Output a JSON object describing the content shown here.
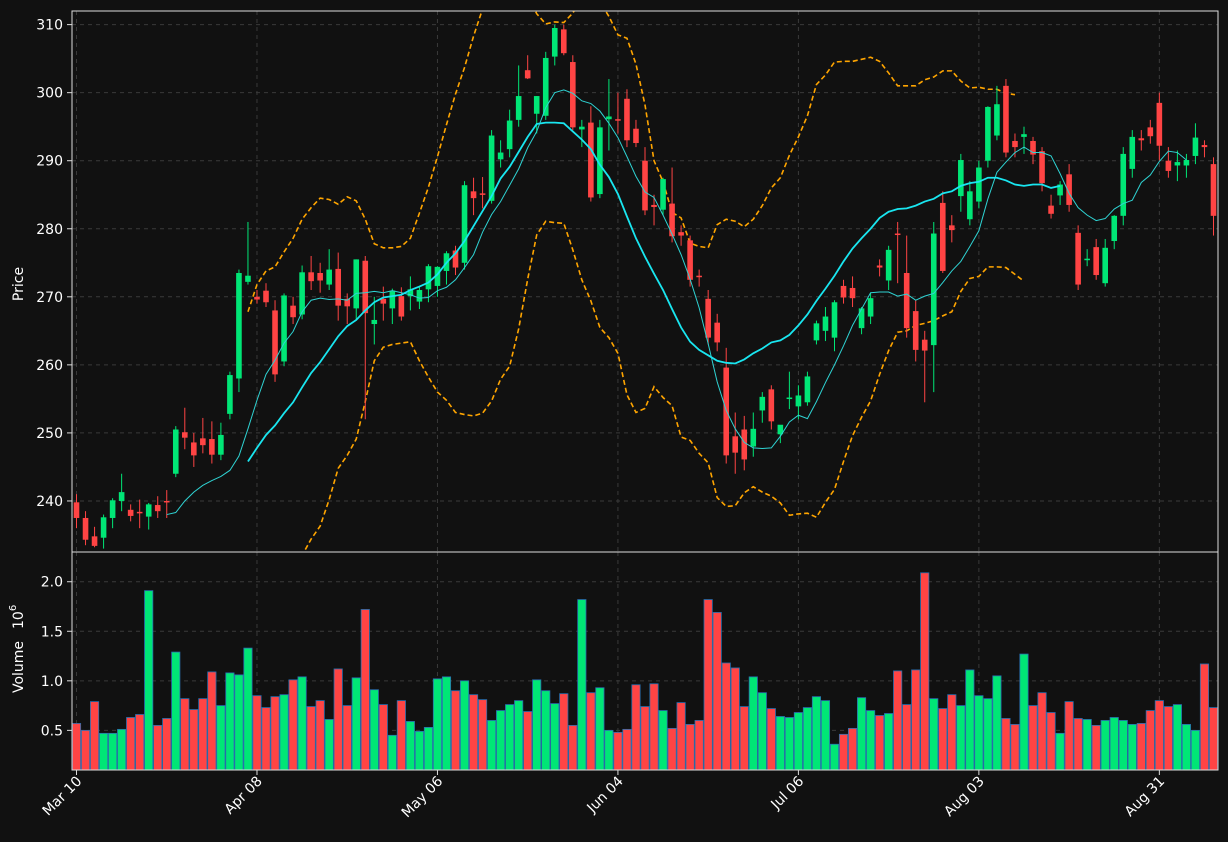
{
  "chart_data": {
    "type": "candlestick",
    "colors": {
      "background": "#111111",
      "grid": "#3a3a3a",
      "axis": "#dddddd",
      "up": "#00e676",
      "down": "#ff4444",
      "ma_fast": "#2fd3d3",
      "ma_slow": "#19e6f0",
      "band": "#ffa500"
    },
    "price_panel": {
      "ylabel": "Price",
      "ylim": [
        232.5,
        312
      ],
      "yticks": [
        240,
        250,
        260,
        270,
        280,
        290,
        300,
        310
      ]
    },
    "volume_panel": {
      "ylabel": "Volume",
      "ylabel_exponent": "6",
      "ylim": [
        0.1,
        2.3
      ],
      "yticks": [
        0.5,
        1.0,
        1.5,
        2.0
      ],
      "ytick_labels": [
        "0.5",
        "1.0",
        "1.5",
        "2.0"
      ]
    },
    "x_tick_labels": [
      {
        "index": 0,
        "label": "Mar 10"
      },
      {
        "index": 20,
        "label": "Apr 08"
      },
      {
        "index": 40,
        "label": "May 06"
      },
      {
        "index": 60,
        "label": "Jun 04"
      },
      {
        "index": 80,
        "label": "Jul 06"
      },
      {
        "index": 100,
        "label": "Aug 03"
      },
      {
        "index": 120,
        "label": "Aug 31"
      }
    ],
    "candles": [
      [
        239.8,
        241.0,
        236.0,
        237.5,
        0.57
      ],
      [
        237.5,
        238.5,
        233.5,
        234.3,
        0.5
      ],
      [
        234.8,
        236.2,
        233.2,
        233.4,
        0.79
      ],
      [
        234.6,
        238.0,
        233.0,
        237.6,
        0.47
      ],
      [
        237.5,
        240.4,
        236.0,
        240.1,
        0.47
      ],
      [
        240.0,
        244.0,
        238.5,
        241.3,
        0.51
      ],
      [
        238.7,
        239.5,
        237.0,
        237.8,
        0.63
      ],
      [
        238.4,
        240.2,
        236.0,
        238.3,
        0.66
      ],
      [
        237.7,
        239.7,
        235.8,
        239.5,
        1.91
      ],
      [
        239.4,
        240.7,
        237.5,
        238.5,
        0.55
      ],
      [
        240.0,
        241.6,
        237.5,
        239.9,
        0.62
      ],
      [
        244.0,
        251.0,
        243.5,
        250.5,
        1.29
      ],
      [
        250.1,
        253.7,
        247.6,
        249.3,
        0.82
      ],
      [
        248.6,
        250.0,
        245.0,
        246.7,
        0.71
      ],
      [
        249.2,
        252.2,
        247.0,
        248.2,
        0.82
      ],
      [
        249.1,
        251.7,
        245.5,
        246.8,
        1.09
      ],
      [
        246.8,
        251.5,
        246.0,
        249.7,
        0.75
      ],
      [
        252.8,
        259.0,
        252.0,
        258.5,
        1.08
      ],
      [
        258.0,
        274.0,
        256.0,
        273.5,
        1.06
      ],
      [
        272.2,
        281.0,
        271.8,
        273.1,
        1.33
      ],
      [
        270.0,
        271.0,
        269.0,
        269.6,
        0.85
      ],
      [
        270.9,
        272.0,
        268.5,
        269.2,
        0.73
      ],
      [
        268.0,
        269.5,
        257.5,
        258.6,
        0.84
      ],
      [
        260.5,
        270.5,
        259.8,
        270.2,
        0.86
      ],
      [
        268.7,
        270.0,
        266.0,
        267.0,
        1.01
      ],
      [
        267.4,
        274.6,
        266.7,
        273.6,
        1.04
      ],
      [
        273.6,
        276.0,
        271.0,
        272.3,
        0.74
      ],
      [
        273.5,
        275.0,
        270.6,
        272.4,
        0.8
      ],
      [
        271.8,
        277.0,
        271.0,
        274.0,
        0.61
      ],
      [
        274.1,
        276.5,
        266.5,
        268.7,
        1.12
      ],
      [
        269.7,
        270.5,
        266.0,
        268.6,
        0.75
      ],
      [
        268.3,
        275.5,
        266.5,
        275.5,
        1.03
      ],
      [
        275.3,
        276.0,
        252.0,
        267.6,
        1.72
      ],
      [
        266.0,
        270.0,
        263.0,
        266.6,
        0.91
      ],
      [
        269.7,
        271.5,
        266.5,
        269.0,
        0.76
      ],
      [
        268.3,
        271.2,
        266.0,
        270.9,
        0.45
      ],
      [
        270.1,
        271.4,
        266.5,
        267.1,
        0.8
      ],
      [
        270.1,
        273.0,
        268.0,
        271.1,
        0.59
      ],
      [
        269.3,
        271.5,
        268.2,
        271.0,
        0.49
      ],
      [
        271.1,
        274.8,
        269.2,
        274.5,
        0.53
      ],
      [
        271.6,
        274.5,
        270.0,
        274.4,
        1.02
      ],
      [
        273.8,
        276.7,
        271.8,
        276.4,
        1.04
      ],
      [
        276.8,
        277.5,
        273.2,
        274.3,
        0.9
      ],
      [
        275.0,
        287.0,
        274.0,
        286.4,
        1.0
      ],
      [
        285.5,
        287.5,
        282.0,
        284.5,
        0.86
      ],
      [
        285.2,
        287.6,
        283.0,
        285.0,
        0.81
      ],
      [
        284.1,
        294.5,
        283.7,
        293.7,
        0.6
      ],
      [
        290.2,
        293.0,
        289.0,
        291.2,
        0.7
      ],
      [
        291.7,
        297.5,
        290.5,
        295.9,
        0.76
      ],
      [
        296.0,
        304.0,
        295.0,
        299.5,
        0.8
      ],
      [
        303.3,
        305.5,
        302.0,
        302.1,
        0.69
      ],
      [
        296.9,
        299.5,
        294.0,
        299.5,
        1.01
      ],
      [
        296.6,
        306.0,
        296.0,
        305.1,
        0.9
      ],
      [
        305.3,
        310.0,
        304.0,
        309.5,
        0.77
      ],
      [
        309.3,
        310.0,
        305.5,
        305.8,
        0.87
      ],
      [
        304.5,
        305.5,
        294.5,
        294.9,
        0.55
      ],
      [
        294.6,
        296.0,
        292.0,
        295.0,
        1.82
      ],
      [
        295.6,
        298.0,
        284.0,
        284.6,
        0.88
      ],
      [
        285.1,
        296.0,
        284.5,
        294.9,
        0.93
      ],
      [
        296.1,
        302.0,
        291.5,
        296.5,
        0.5
      ],
      [
        296.1,
        300.0,
        294.0,
        296.0,
        0.48
      ],
      [
        299.1,
        300.5,
        292.0,
        293.0,
        0.51
      ],
      [
        294.7,
        296.0,
        292.0,
        292.6,
        0.96
      ],
      [
        290.0,
        292.0,
        282.0,
        282.7,
        0.74
      ],
      [
        283.5,
        285.0,
        280.5,
        283.2,
        0.97
      ],
      [
        282.8,
        287.5,
        282.0,
        287.3,
        0.7
      ],
      [
        283.7,
        289.0,
        278.0,
        278.9,
        0.52
      ],
      [
        279.5,
        280.5,
        277.5,
        279.0,
        0.78
      ],
      [
        278.3,
        279.0,
        271.5,
        272.5,
        0.56
      ],
      [
        273.1,
        274.0,
        271.5,
        273.0,
        0.6
      ],
      [
        269.7,
        271.0,
        263.0,
        264.0,
        1.82
      ],
      [
        266.2,
        267.5,
        262.0,
        263.3,
        1.69
      ],
      [
        259.6,
        262.5,
        245.5,
        246.7,
        1.18
      ],
      [
        249.5,
        253.0,
        244.0,
        247.1,
        1.13
      ],
      [
        250.5,
        252.5,
        244.5,
        246.1,
        0.74
      ],
      [
        248.0,
        253.0,
        246.5,
        250.6,
        1.04
      ],
      [
        253.3,
        256.0,
        251.5,
        255.3,
        0.88
      ],
      [
        256.4,
        257.0,
        250.5,
        251.7,
        0.72
      ],
      [
        249.8,
        251.0,
        248.5,
        251.2,
        0.64
      ],
      [
        255.0,
        259.0,
        253.5,
        255.2,
        0.63
      ],
      [
        253.9,
        257.0,
        252.0,
        255.5,
        0.68
      ],
      [
        254.5,
        259.0,
        254.0,
        258.3,
        0.73
      ],
      [
        263.6,
        266.5,
        263.0,
        266.1,
        0.84
      ],
      [
        265.0,
        268.5,
        263.5,
        267.1,
        0.8
      ],
      [
        264.0,
        269.5,
        262.0,
        269.2,
        0.36
      ],
      [
        271.6,
        272.5,
        269.0,
        269.9,
        0.46
      ],
      [
        271.3,
        273.0,
        268.5,
        269.8,
        0.52
      ],
      [
        265.4,
        268.5,
        264.5,
        268.3,
        0.83
      ],
      [
        267.1,
        270.5,
        266.0,
        269.8,
        0.7
      ],
      [
        274.6,
        275.5,
        273.0,
        274.3,
        0.65
      ],
      [
        272.4,
        277.5,
        271.0,
        276.9,
        0.67
      ],
      [
        279.3,
        281.0,
        272.0,
        279.1,
        1.1
      ],
      [
        273.5,
        279.0,
        264.0,
        265.4,
        0.76
      ],
      [
        267.9,
        269.5,
        260.5,
        262.2,
        1.11
      ],
      [
        263.7,
        265.0,
        254.5,
        262.1,
        2.09
      ],
      [
        262.9,
        281.0,
        256.0,
        279.3,
        0.82
      ],
      [
        283.8,
        285.5,
        273.5,
        273.8,
        0.72
      ],
      [
        280.5,
        282.0,
        278.0,
        279.8,
        0.86
      ],
      [
        284.8,
        291.0,
        282.5,
        290.1,
        0.75
      ],
      [
        281.4,
        287.0,
        280.5,
        285.5,
        1.11
      ],
      [
        284.0,
        290.0,
        283.0,
        289.0,
        0.85
      ],
      [
        290.0,
        298.0,
        289.0,
        297.9,
        0.82
      ],
      [
        293.7,
        301.0,
        293.0,
        298.3,
        1.05
      ],
      [
        301.0,
        302.0,
        290.5,
        291.2,
        0.62
      ],
      [
        292.9,
        294.0,
        290.5,
        292.0,
        0.56
      ],
      [
        293.5,
        295.0,
        291.0,
        293.9,
        1.27
      ],
      [
        292.9,
        293.5,
        289.5,
        290.9,
        0.75
      ],
      [
        291.4,
        292.0,
        285.5,
        286.7,
        0.88
      ],
      [
        283.4,
        285.0,
        281.5,
        282.2,
        0.68
      ],
      [
        284.9,
        287.0,
        283.5,
        286.5,
        0.47
      ],
      [
        288.0,
        289.5,
        282.5,
        283.5,
        0.79
      ],
      [
        279.4,
        280.5,
        271.0,
        271.8,
        0.62
      ],
      [
        275.4,
        277.0,
        274.5,
        275.6,
        0.61
      ],
      [
        277.3,
        278.5,
        272.5,
        273.2,
        0.55
      ],
      [
        272.0,
        278.5,
        271.5,
        277.2,
        0.6
      ],
      [
        278.2,
        282.0,
        277.0,
        281.9,
        0.63
      ],
      [
        281.9,
        292.0,
        280.5,
        291.0,
        0.6
      ],
      [
        288.8,
        294.5,
        287.5,
        293.5,
        0.56
      ],
      [
        293.3,
        294.5,
        291.5,
        293.0,
        0.57
      ],
      [
        294.9,
        296.0,
        292.5,
        293.6,
        0.7
      ],
      [
        298.5,
        300.0,
        290.0,
        292.2,
        0.8
      ],
      [
        290.0,
        292.0,
        287.5,
        288.5,
        0.74
      ],
      [
        289.3,
        291.5,
        287.0,
        289.8,
        0.76
      ],
      [
        289.3,
        291.0,
        287.5,
        290.1,
        0.56
      ],
      [
        290.7,
        295.5,
        289.5,
        293.4,
        0.5
      ],
      [
        292.3,
        293.0,
        290.5,
        292.0,
        1.17
      ],
      [
        289.5,
        290.5,
        279.0,
        281.9,
        0.73
      ]
    ],
    "ma_fast": [
      null,
      null,
      null,
      null,
      null,
      null,
      null,
      null,
      null,
      null,
      238,
      238.3,
      240,
      241.3,
      242.3,
      243,
      243.6,
      244.5,
      246.6,
      250.6,
      254.8,
      258.6,
      260.7,
      263.2,
      264.9,
      267.8,
      269.5,
      269.8,
      269.6,
      269.7,
      269.5,
      270.5,
      270.6,
      270.8,
      270.6,
      270.9,
      270.6,
      270.3,
      269.8,
      269.9,
      270.9,
      271.4,
      272.5,
      274.3,
      276.2,
      279.5,
      282.1,
      284,
      286.4,
      288.8,
      291.9,
      294.3,
      297.8,
      300,
      300.4,
      299.9,
      298.8,
      298.4,
      297.3,
      295.5,
      293.4,
      290.6,
      287.7,
      285.4,
      284.6,
      282,
      279.2,
      276.2,
      272.6,
      268.4,
      263.1,
      257.5,
      253.3,
      250.6,
      248.6,
      247.8,
      247.7,
      247.8,
      249.5,
      251.6,
      252.6,
      252.1,
      254.6,
      257.4,
      260,
      262.8,
      265.8,
      268.2,
      270.6,
      270.7,
      270.7,
      270.1,
      270.4,
      269.5,
      270.1,
      270.5,
      272.1,
      273.8,
      275.2,
      277.4,
      279.7,
      284.4,
      288.3,
      289.8,
      291.2,
      292,
      291.2,
      291.2,
      290.7,
      288.1,
      285.2,
      283.1,
      282,
      281.2,
      281.5,
      282.9,
      283.7,
      284.2,
      286.8,
      287.9,
      289.9,
      291.4,
      291.2,
      290.1
    ],
    "ma_slow": [
      null,
      null,
      null,
      null,
      null,
      null,
      null,
      null,
      null,
      null,
      null,
      null,
      null,
      null,
      null,
      null,
      null,
      null,
      null,
      245.8,
      247.8,
      249.7,
      251.1,
      252.9,
      254.5,
      256.7,
      258.8,
      260.4,
      262.3,
      264.2,
      265.7,
      266.6,
      268,
      269.2,
      269.9,
      270.1,
      270.3,
      271,
      271.5,
      272.1,
      273.3,
      275,
      276.4,
      278.2,
      280.4,
      282.6,
      284.8,
      287.4,
      289.1,
      291.3,
      293.5,
      295.4,
      295.6,
      295.6,
      295.5,
      294.3,
      293.1,
      291.7,
      289.4,
      287.6,
      285.1,
      281.8,
      278.6,
      275.9,
      273.4,
      271,
      268.2,
      265.5,
      263.4,
      262.2,
      261.4,
      260.6,
      260.3,
      260.2,
      260.8,
      261.7,
      262.4,
      263.3,
      263.6,
      264.4,
      265.8,
      267.4,
      269.4,
      271.2,
      273.1,
      275.2,
      277.1,
      278.6,
      280,
      281.6,
      282.5,
      282.9,
      283,
      283.4,
      284,
      284.4,
      285.2,
      285.5,
      286.3,
      286.7,
      286.9,
      287.5,
      287.5,
      287.1,
      286.5,
      286.3,
      286.5,
      286.5,
      286,
      286.3
    ],
    "band_upper": [
      null,
      null,
      null,
      null,
      null,
      null,
      null,
      null,
      null,
      null,
      null,
      null,
      null,
      null,
      null,
      null,
      null,
      null,
      null,
      267.8,
      271.8,
      273.8,
      274.4,
      276.6,
      278.6,
      281.4,
      283.1,
      284.5,
      284.3,
      283.6,
      284.7,
      284.1,
      281.4,
      277.8,
      277.2,
      277.2,
      277.4,
      278.6,
      282.3,
      286.1,
      290.6,
      295.3,
      299.8,
      303.7,
      308.3,
      312.3,
      315,
      316.9,
      318.4,
      317.3,
      314.3,
      311.6,
      310.1,
      310.4,
      310.3,
      311.7,
      313.8,
      314.1,
      313.4,
      311.2,
      308.5,
      308,
      304.2,
      298.2,
      290,
      286.9,
      282.4,
      281.6,
      277.9,
      277.4,
      277.2,
      280.6,
      281.4,
      281.1,
      280.3,
      281.4,
      283.4,
      286,
      287.5,
      290.8,
      293.5,
      296.6,
      301.2,
      302.6,
      304.5,
      304.6,
      304.6,
      304.9,
      305.2,
      304.6,
      302.9,
      301,
      301,
      301,
      301.9,
      302.3,
      303.2,
      303.2,
      301.7,
      300.7,
      300.8,
      300.5,
      300.5,
      299.9,
      299.7
    ],
    "band_lower": [
      null,
      null,
      null,
      null,
      null,
      null,
      null,
      null,
      null,
      null,
      null,
      null,
      null,
      null,
      null,
      null,
      null,
      null,
      null,
      223.7,
      223.8,
      225.6,
      227.8,
      229.3,
      230.3,
      232,
      234.4,
      236.3,
      240.2,
      244.8,
      246.7,
      249.1,
      254.6,
      260.6,
      262.6,
      263,
      263.2,
      263.4,
      260.6,
      258.2,
      256,
      254.8,
      253,
      252.7,
      252.5,
      252.9,
      254.7,
      257.9,
      259.8,
      265.3,
      272.6,
      279.1,
      281.1,
      280.9,
      280.8,
      276.9,
      272.5,
      269.4,
      265.5,
      264,
      261.7,
      255.6,
      253,
      253.6,
      256.8,
      255.2,
      254,
      249.4,
      248.9,
      247,
      245.6,
      240.5,
      239.2,
      239.3,
      241.2,
      242.1,
      241.3,
      240.7,
      239.7,
      237.9,
      238.1,
      238.2,
      237.6,
      239.8,
      241.7,
      245.8,
      249.6,
      252.3,
      254.7,
      258.6,
      262.1,
      264.8,
      265,
      265.8,
      266.1,
      266.5,
      267.2,
      267.8,
      270.8,
      272.7,
      273,
      274.4,
      274.4,
      274.3,
      273.3,
      272.3
    ]
  }
}
